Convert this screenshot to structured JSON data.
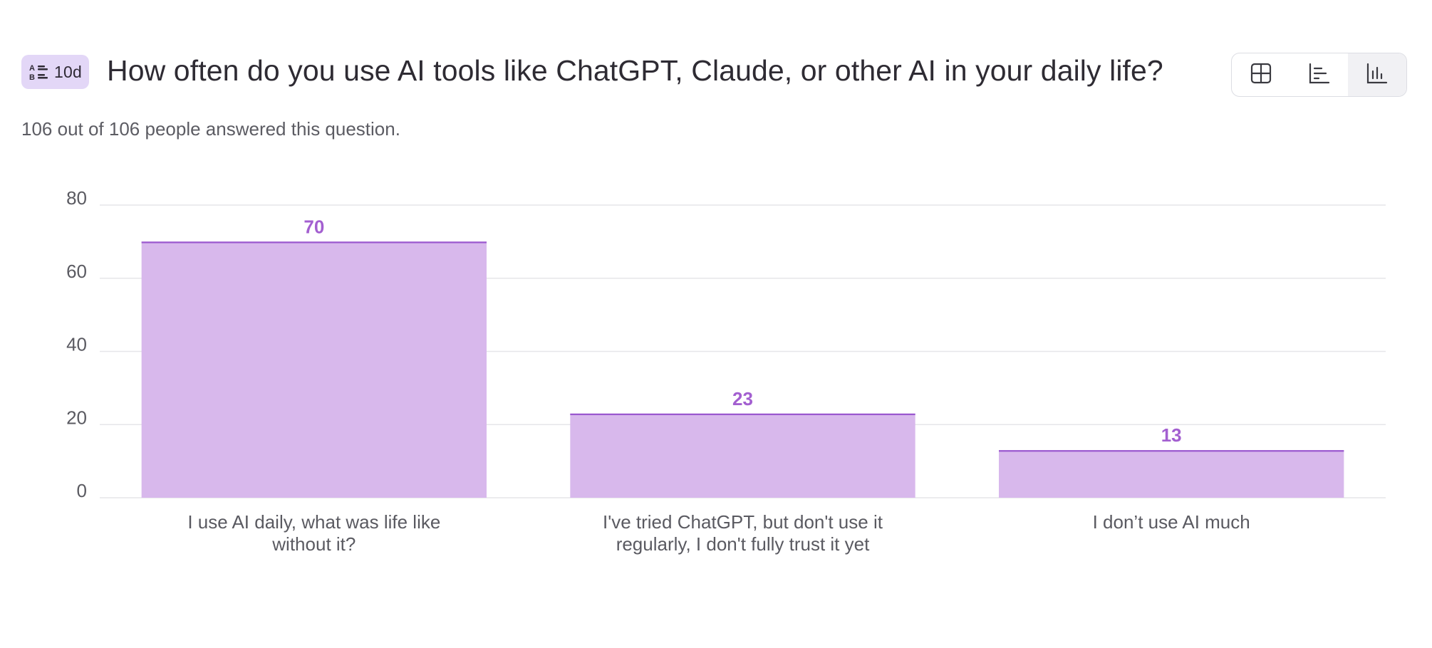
{
  "question": {
    "badge_label": "10d",
    "title": "How often do you use AI tools like ChatGPT, Claude, or other AI in your daily life?",
    "answered_text": "106 out of 106 people answered this question."
  },
  "view_toggle": {
    "items": [
      {
        "icon": "table-icon",
        "active": false
      },
      {
        "icon": "horizontal-bar-chart-icon",
        "active": false
      },
      {
        "icon": "vertical-bar-chart-icon",
        "active": true
      }
    ]
  },
  "colors": {
    "bar_fill": "#d8b8ec",
    "bar_stroke": "#9b59cf",
    "value_label": "#a35fd0",
    "grid": "#e6e6e9",
    "axis_text": "#5a5a61",
    "badge_bg": "#e3d7f7"
  },
  "chart_data": {
    "type": "bar",
    "categories": [
      [
        "I use AI daily, what was life like",
        "without it?"
      ],
      [
        "I've tried ChatGPT, but don't use it",
        "regularly, I don't fully trust it yet"
      ],
      [
        "I don’t use AI much"
      ]
    ],
    "values": [
      70,
      23,
      13
    ],
    "ylim": [
      0,
      80
    ],
    "yticks": [
      0,
      20,
      40,
      60,
      80
    ],
    "grid": true,
    "legend": "none"
  }
}
